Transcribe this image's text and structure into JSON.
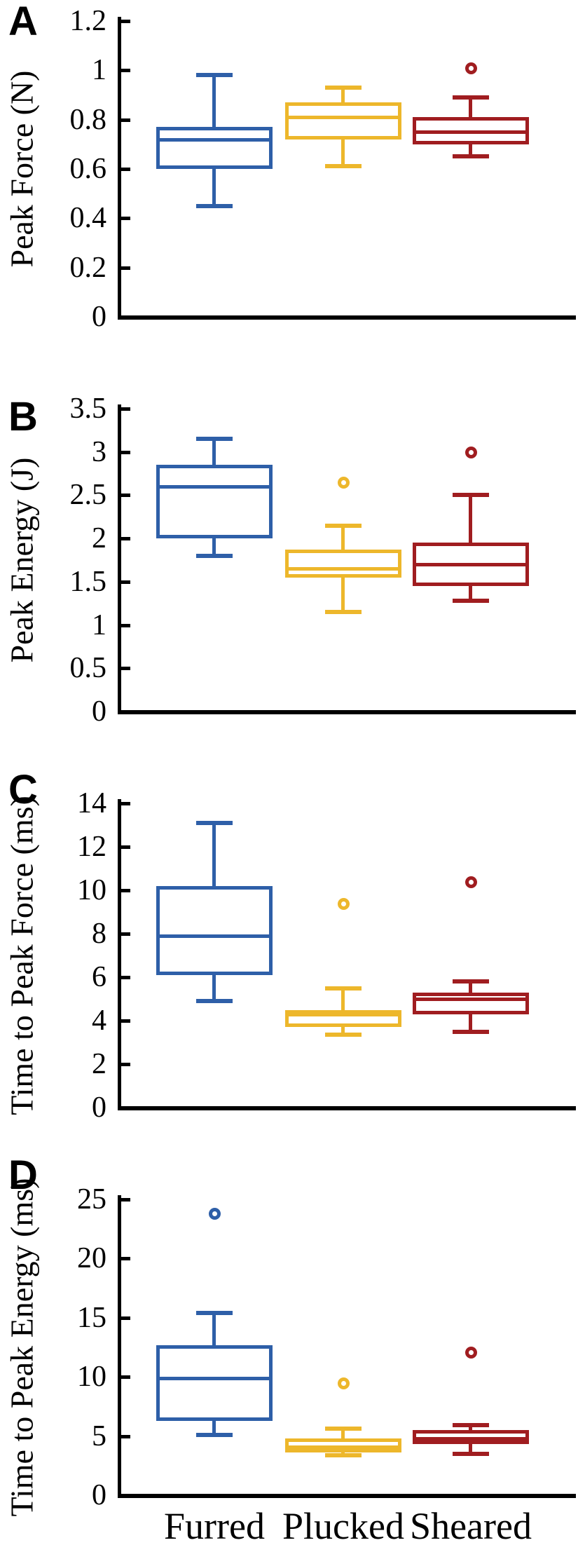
{
  "figure": {
    "background": "#ffffff",
    "categories": [
      "Furred",
      "Plucked",
      "Sheared"
    ],
    "series_colors": {
      "Furred": "#2E5FA8",
      "Plucked": "#EDB72B",
      "Sheared": "#A01D20"
    },
    "axis_color": "#000000"
  },
  "chart_data": [
    {
      "type": "boxplot",
      "panel_label": "A",
      "ylabel": "Peak Force (N)",
      "ylim": [
        0,
        1.2
      ],
      "yticks": [
        0,
        0.2,
        0.4,
        0.6,
        0.8,
        1,
        1.2
      ],
      "ytick_labels": [
        "0",
        "0.2",
        "0.4",
        "0.6",
        "0.8",
        "1",
        "1.2"
      ],
      "categories": [
        "Furred",
        "Plucked",
        "Sheared"
      ],
      "series": [
        {
          "name": "Furred",
          "color": "#2E5FA8",
          "whisker_low": 0.45,
          "q1": 0.6,
          "median": 0.72,
          "q3": 0.77,
          "whisker_high": 0.98,
          "outliers": []
        },
        {
          "name": "Plucked",
          "color": "#EDB72B",
          "whisker_low": 0.61,
          "q1": 0.72,
          "median": 0.81,
          "q3": 0.87,
          "whisker_high": 0.93,
          "outliers": []
        },
        {
          "name": "Sheared",
          "color": "#A01D20",
          "whisker_low": 0.65,
          "q1": 0.7,
          "median": 0.75,
          "q3": 0.81,
          "whisker_high": 0.89,
          "outliers": [
            1.01
          ]
        }
      ]
    },
    {
      "type": "boxplot",
      "panel_label": "B",
      "ylabel": "Peak Energy (J)",
      "ylim": [
        0,
        3.5
      ],
      "yticks": [
        0,
        0.5,
        1,
        1.5,
        2,
        2.5,
        3,
        3.5
      ],
      "ytick_labels": [
        "0",
        "0.5",
        "1",
        "1.5",
        "2",
        "2.5",
        "3",
        "3.5"
      ],
      "categories": [
        "Furred",
        "Plucked",
        "Sheared"
      ],
      "series": [
        {
          "name": "Furred",
          "color": "#2E5FA8",
          "whisker_low": 1.8,
          "q1": 2.0,
          "median": 2.6,
          "q3": 2.85,
          "whisker_high": 3.15,
          "outliers": []
        },
        {
          "name": "Plucked",
          "color": "#EDB72B",
          "whisker_low": 1.15,
          "q1": 1.55,
          "median": 1.65,
          "q3": 1.87,
          "whisker_high": 2.15,
          "outliers": [
            2.65
          ]
        },
        {
          "name": "Sheared",
          "color": "#A01D20",
          "whisker_low": 1.28,
          "q1": 1.45,
          "median": 1.7,
          "q3": 1.95,
          "whisker_high": 2.5,
          "outliers": [
            3.0
          ]
        }
      ]
    },
    {
      "type": "boxplot",
      "panel_label": "C",
      "ylabel": "Time to Peak Force (ms)",
      "ylim": [
        0,
        14
      ],
      "yticks": [
        0,
        2,
        4,
        6,
        8,
        10,
        12,
        14
      ],
      "ytick_labels": [
        "0",
        "2",
        "4",
        "6",
        "8",
        "10",
        "12",
        "14"
      ],
      "categories": [
        "Furred",
        "Plucked",
        "Sheared"
      ],
      "series": [
        {
          "name": "Furred",
          "color": "#2E5FA8",
          "whisker_low": 4.9,
          "q1": 6.1,
          "median": 7.9,
          "q3": 10.2,
          "whisker_high": 13.1,
          "outliers": []
        },
        {
          "name": "Plucked",
          "color": "#EDB72B",
          "whisker_low": 3.35,
          "q1": 3.7,
          "median": 4.3,
          "q3": 4.5,
          "whisker_high": 5.5,
          "outliers": [
            9.4
          ]
        },
        {
          "name": "Sheared",
          "color": "#A01D20",
          "whisker_low": 3.5,
          "q1": 4.3,
          "median": 5.0,
          "q3": 5.3,
          "whisker_high": 5.8,
          "outliers": [
            10.4
          ]
        }
      ]
    },
    {
      "type": "boxplot",
      "panel_label": "D",
      "ylabel": "Time to Peak Energy (ms)",
      "ylim": [
        0,
        25
      ],
      "yticks": [
        0,
        5,
        10,
        15,
        20,
        25
      ],
      "ytick_labels": [
        "0",
        "5",
        "10",
        "15",
        "20",
        "25"
      ],
      "categories": [
        "Furred",
        "Plucked",
        "Sheared"
      ],
      "series": [
        {
          "name": "Furred",
          "color": "#2E5FA8",
          "whisker_low": 5.1,
          "q1": 6.3,
          "median": 9.9,
          "q3": 12.7,
          "whisker_high": 15.4,
          "outliers": [
            23.8
          ]
        },
        {
          "name": "Plucked",
          "color": "#EDB72B",
          "whisker_low": 3.4,
          "q1": 3.6,
          "median": 4.1,
          "q3": 4.8,
          "whisker_high": 5.6,
          "outliers": [
            9.5
          ]
        },
        {
          "name": "Sheared",
          "color": "#A01D20",
          "whisker_low": 3.5,
          "q1": 4.3,
          "median": 4.8,
          "q3": 5.5,
          "whisker_high": 5.9,
          "outliers": [
            12.1
          ]
        }
      ]
    }
  ]
}
